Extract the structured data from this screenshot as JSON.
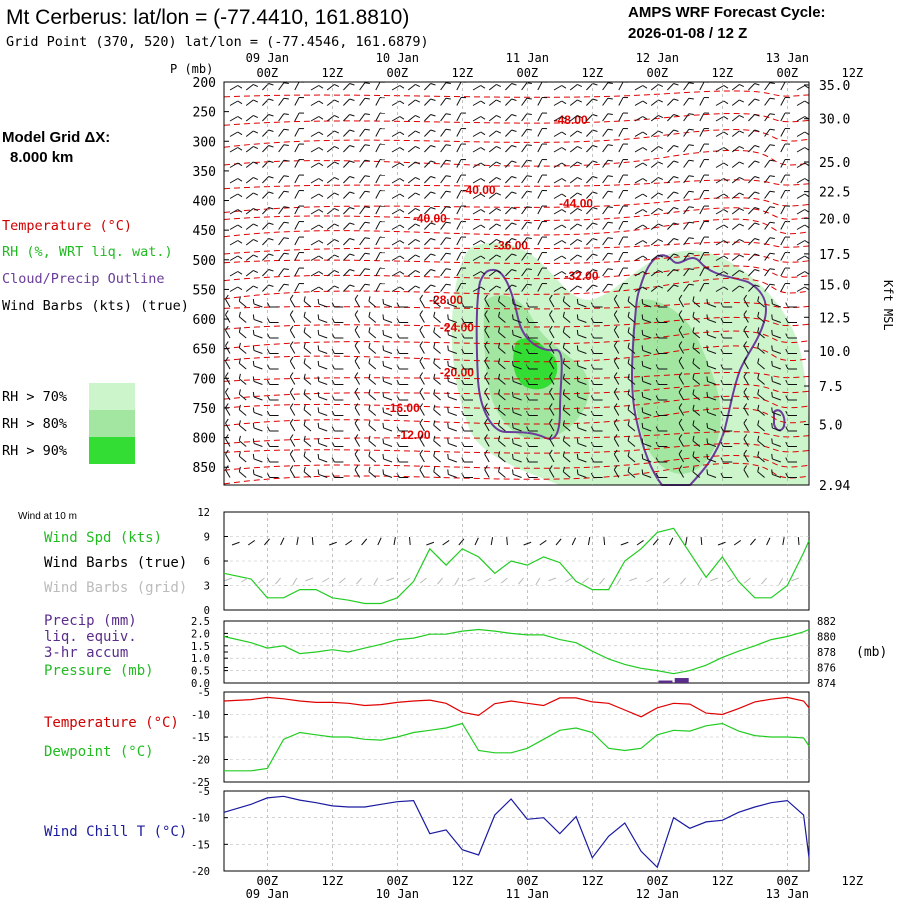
{
  "header": {
    "title": "Mt Cerberus:  lat/lon = (-77.4410, 161.8810)",
    "subtitle": "Grid Point (370, 520) lat/lon = (-77.4546, 161.6879)",
    "cycle_label": "AMPS WRF Forecast Cycle:",
    "cycle_value": "2026-01-08 / 12  Z"
  },
  "model_grid": {
    "label": "Model Grid ΔX:",
    "value": "8.000 km"
  },
  "legend": {
    "temperature": "Temperature (°C)",
    "rh": "RH (%, WRT liq. wat.)",
    "cloud": "Cloud/Precip Outline",
    "barbs": "Wind Barbs (kts) (true)",
    "rh70": "RH > 70%",
    "rh80": "RH > 80%",
    "rh90": "RH > 90%"
  },
  "colors": {
    "temperature": "#e00000",
    "rh70": "#ccf5cc",
    "rh80": "#a2e6a2",
    "rh90": "#33dd33",
    "cloud": "#6a3d9a",
    "wind_speed": "#22cc22",
    "grid_barbs": "#bbbbbb",
    "wind_chill": "#1a1aa0",
    "precip": "#5a2d8a"
  },
  "time_axis": {
    "top_dates": [
      "09 Jan",
      "10 Jan",
      "11 Jan",
      "12 Jan",
      "13 Jan"
    ],
    "bottom_dates": [
      "09 Jan",
      "10 Jan",
      "11 Jan",
      "12 Jan",
      "13 Jan"
    ],
    "ticks": [
      "00Z",
      "12Z",
      "00Z",
      "12Z",
      "00Z",
      "12Z",
      "00Z",
      "12Z",
      "00Z",
      "12Z"
    ]
  },
  "panel_labels": {
    "p_unit": "P (mb)",
    "height_axis": "Kft MSL",
    "wind10m": "Wind at 10 m",
    "wind_spd": "Wind Spd (kts)",
    "wind_barbs_true": "Wind Barbs (true)",
    "wind_barbs_grid": "Wind Barbs (grid)",
    "precip1": "Precip (mm)",
    "precip2": "liq. equiv.",
    "precip3": "3-hr accum",
    "pressure": "Pressure (mb)",
    "pressure_unit": "(mb)",
    "temp": "Temperature (°C)",
    "dewpoint": "Dewpoint (°C)",
    "windchill": "Wind Chill T (°C)"
  },
  "chart_data": [
    {
      "type": "heatmap",
      "panel": "vertical cross-section (time vs pressure)",
      "x_range_hours": [
        -8,
        100
      ],
      "y_axis": "P (mb)",
      "y_ticks": [
        "200",
        "250",
        "300",
        "350",
        "400",
        "450",
        "500",
        "550",
        "600",
        "650",
        "700",
        "750",
        "800",
        "850"
      ],
      "y_range": [
        200,
        880
      ],
      "height_ticks": [
        "35.0",
        "30.0",
        "25.0",
        "22.5",
        "20.0",
        "17.5",
        "15.0",
        "12.5",
        "10.0",
        "7.5",
        "5.0",
        "2.94"
      ],
      "height_tick_pressures": [
        205,
        262,
        335,
        385,
        430,
        490,
        542,
        597,
        654,
        713,
        778,
        880
      ],
      "temperature_contour_labels": [
        {
          "label": "-48.00",
          "t": 56,
          "p": 264
        },
        {
          "label": "-40.00",
          "t": 39,
          "p": 382
        },
        {
          "label": "-44.00",
          "t": 57,
          "p": 405
        },
        {
          "label": "-40.00",
          "t": 30,
          "p": 430
        },
        {
          "label": "-36.00",
          "t": 45,
          "p": 476
        },
        {
          "label": "-32.00",
          "t": 58,
          "p": 527
        },
        {
          "label": "-28.00",
          "t": 33,
          "p": 568
        },
        {
          "label": "-24.00",
          "t": 35,
          "p": 614
        },
        {
          "label": "-20.00",
          "t": 35,
          "p": 690
        },
        {
          "label": "-16.00",
          "t": 25,
          "p": 750
        },
        {
          "label": "-12.00",
          "t": 27,
          "p": 796
        }
      ]
    },
    {
      "type": "line",
      "panel": "Wind at 10 m",
      "ylim": [
        0,
        12
      ],
      "y_ticks": [
        "0",
        "3",
        "6",
        "9",
        "12"
      ],
      "series": [
        {
          "name": "Wind Spd (kts)",
          "x": [
            -8,
            -3,
            0,
            3,
            6,
            9,
            12,
            15,
            18,
            21,
            24,
            27,
            30,
            33,
            36,
            39,
            42,
            45,
            48,
            51,
            54,
            57,
            60,
            63,
            66,
            69,
            72,
            75,
            78,
            81,
            84,
            87,
            90,
            93,
            96,
            99,
            100
          ],
          "y": [
            4.5,
            3.8,
            1.5,
            1.5,
            2.5,
            2.5,
            1.5,
            1.2,
            0.8,
            0.8,
            1.5,
            3.5,
            7.5,
            5.5,
            7.5,
            6.5,
            4.5,
            6,
            5.5,
            6.5,
            5.8,
            3.5,
            2.5,
            2.5,
            6,
            7.5,
            9.5,
            10,
            7,
            4,
            6.5,
            3.5,
            1.5,
            1.5,
            3,
            7,
            8.5
          ]
        }
      ]
    },
    {
      "type": "line",
      "panel": "Precip / Pressure",
      "ylim_precip": [
        0,
        2.5
      ],
      "precip_ticks": [
        "0.0",
        "0.5",
        "1.0",
        "1.5",
        "2.0",
        "2.5"
      ],
      "pressure_ticks": [
        "874",
        "876",
        "878",
        "880",
        "882"
      ],
      "ylim_pressure": [
        874,
        882
      ],
      "series": [
        {
          "name": "Pressure (mb)",
          "x": [
            -8,
            -3,
            0,
            3,
            6,
            9,
            12,
            15,
            18,
            21,
            24,
            27,
            30,
            33,
            36,
            39,
            42,
            45,
            48,
            51,
            54,
            57,
            60,
            63,
            66,
            69,
            72,
            75,
            78,
            81,
            84,
            87,
            90,
            93,
            96,
            99,
            100
          ],
          "y": [
            880,
            879.2,
            878.5,
            878.8,
            877.8,
            878,
            878.3,
            878,
            878.5,
            879,
            879.6,
            879.8,
            880.3,
            880.3,
            880.7,
            880.9,
            880.7,
            880.4,
            880.2,
            880.2,
            879.6,
            879.2,
            878.1,
            877.1,
            876.4,
            875.9,
            875.6,
            875.2,
            875.6,
            876.3,
            877.3,
            878.1,
            878.8,
            879.6,
            880,
            880.6,
            880.9
          ]
        },
        {
          "name": "Precip (mm)",
          "x": [
            73.5,
            76.5
          ],
          "y": [
            0.1,
            0.2
          ]
        }
      ]
    },
    {
      "type": "line",
      "panel": "Temperature / Dewpoint",
      "ylim": [
        -25,
        -5
      ],
      "y_ticks": [
        "-5",
        "-10",
        "-15",
        "-20",
        "-25"
      ],
      "series": [
        {
          "name": "Temperature (°C)",
          "x": [
            -8,
            -3,
            0,
            3,
            6,
            9,
            12,
            15,
            18,
            21,
            24,
            27,
            30,
            33,
            36,
            39,
            42,
            45,
            48,
            51,
            54,
            57,
            60,
            63,
            66,
            69,
            72,
            75,
            78,
            81,
            84,
            87,
            90,
            93,
            96,
            99,
            100
          ],
          "y": [
            -7,
            -6.7,
            -6.2,
            -6.5,
            -7,
            -7.3,
            -7.3,
            -7.5,
            -8,
            -7.8,
            -7.3,
            -7,
            -6.8,
            -7.5,
            -9.5,
            -10.2,
            -7.6,
            -7,
            -7.5,
            -8,
            -6.3,
            -6.3,
            -7.2,
            -7.5,
            -9,
            -10.5,
            -8.5,
            -7.5,
            -7.7,
            -9.7,
            -10,
            -8.7,
            -7.2,
            -6.6,
            -6.2,
            -7,
            -8.5
          ]
        },
        {
          "name": "Dewpoint (°C)",
          "x": [
            -8,
            -3,
            0,
            3,
            6,
            9,
            12,
            15,
            18,
            21,
            24,
            27,
            30,
            33,
            36,
            39,
            42,
            45,
            48,
            51,
            54,
            57,
            60,
            63,
            66,
            69,
            72,
            75,
            78,
            81,
            84,
            87,
            90,
            93,
            96,
            99,
            100
          ],
          "y": [
            -22.5,
            -22.5,
            -22,
            -15.5,
            -14,
            -14.5,
            -15,
            -15,
            -15.5,
            -15.7,
            -15,
            -14,
            -13.5,
            -13,
            -12,
            -18,
            -18.5,
            -18.5,
            -17.5,
            -15.5,
            -13.5,
            -13,
            -14,
            -17.5,
            -18,
            -17.5,
            -14.5,
            -13.5,
            -13.7,
            -12.5,
            -12,
            -13.7,
            -14.7,
            -15,
            -15,
            -15.2,
            -17
          ]
        }
      ]
    },
    {
      "type": "line",
      "panel": "Wind Chill",
      "ylim": [
        -20,
        -5
      ],
      "y_ticks": [
        "-5",
        "-10",
        "-15",
        "-20"
      ],
      "series": [
        {
          "name": "Wind Chill T (°C)",
          "x": [
            -8,
            -3,
            0,
            3,
            6,
            9,
            12,
            15,
            18,
            21,
            24,
            27,
            30,
            33,
            36,
            39,
            42,
            45,
            48,
            51,
            54,
            57,
            60,
            63,
            66,
            69,
            72,
            75,
            78,
            81,
            84,
            87,
            90,
            93,
            96,
            99,
            100
          ],
          "y": [
            -9,
            -7.5,
            -6.3,
            -6,
            -6.7,
            -7.2,
            -7.8,
            -8,
            -8,
            -7.5,
            -7,
            -6.8,
            -13,
            -12.3,
            -16,
            -17,
            -9.5,
            -6.5,
            -10.3,
            -10,
            -13,
            -9.8,
            -17.5,
            -13.5,
            -11,
            -16.3,
            -19.3,
            -10,
            -12,
            -10.8,
            -10.5,
            -9,
            -8,
            -7.2,
            -6.8,
            -9.5,
            -17.5
          ]
        }
      ]
    }
  ]
}
